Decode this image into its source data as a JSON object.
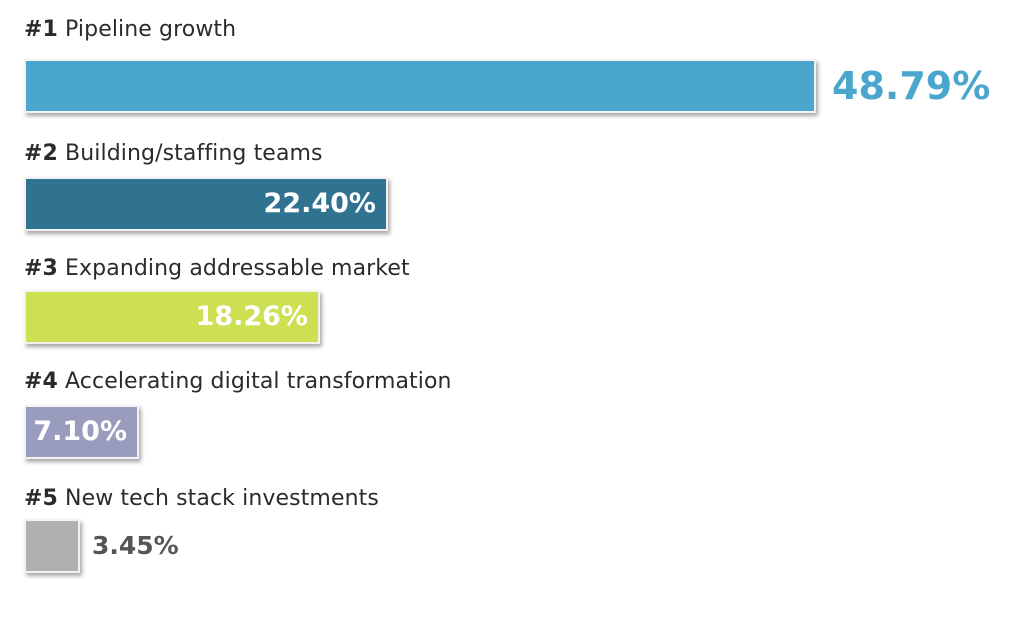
{
  "chart_data": {
    "type": "bar",
    "orientation": "horizontal",
    "categories": [
      "#1 Pipeline growth",
      "#2 Building/staffing teams",
      "#3 Expanding addressable market",
      "#4 Accelerating digital transformation",
      "#5 New tech stack investments"
    ],
    "items": [
      {
        "rank": "#1",
        "name": "Pipeline growth",
        "value": 48.79,
        "value_label": "48.79%",
        "color": "#4aa6cc",
        "label_color": "#4aa6cc",
        "label_position": "outside"
      },
      {
        "rank": "#2",
        "name": "Building/staffing teams",
        "value": 22.4,
        "value_label": "22.40%",
        "color": "#2f7391",
        "label_color": "#ffffff",
        "label_position": "inside"
      },
      {
        "rank": "#3",
        "name": "Expanding addressable market",
        "value": 18.26,
        "value_label": "18.26%",
        "color": "#cce052",
        "label_color": "#ffffff",
        "label_position": "inside"
      },
      {
        "rank": "#4",
        "name": "Accelerating digital transformation",
        "value": 7.1,
        "value_label": "7.10%",
        "color": "#9a9cbe",
        "label_color": "#ffffff",
        "label_position": "inside"
      },
      {
        "rank": "#5",
        "name": "New tech stack investments",
        "value": 3.45,
        "value_label": "3.45%",
        "color": "#b0b0b2",
        "label_color": "#555555",
        "label_position": "outside"
      }
    ],
    "title": "",
    "xlabel": "",
    "ylabel": "",
    "grid": false,
    "legend": "none"
  }
}
